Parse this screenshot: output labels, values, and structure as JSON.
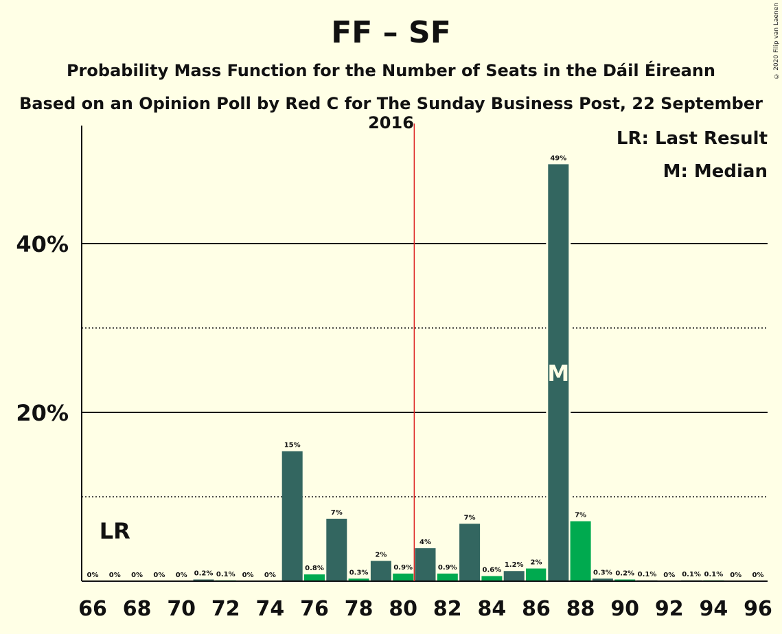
{
  "header": {
    "title": "FF – SF",
    "subtitle": "Probability Mass Function for the Number of Seats in the Dáil Éireann",
    "subtitle2": "Based on an Opinion Poll by Red C for The Sunday Business Post, 22 September 2016",
    "copyright": "© 2020 Filip van Laenen"
  },
  "legend": {
    "last_result": "LR: Last Result",
    "median": "M: Median"
  },
  "colors": {
    "dark_bar": "#336660",
    "light_bar": "#00aa4f",
    "majority_line": "#dd2222",
    "background": "#ffffe6"
  },
  "chart_data": {
    "type": "bar",
    "x": [
      66,
      67,
      68,
      69,
      70,
      71,
      72,
      73,
      74,
      75,
      76,
      77,
      78,
      79,
      80,
      81,
      82,
      83,
      84,
      85,
      86,
      87,
      88,
      89,
      90,
      91,
      92,
      93,
      94,
      95,
      96
    ],
    "values": [
      0,
      0,
      0,
      0,
      0,
      0.2,
      0.1,
      0,
      0,
      15.4,
      0.8,
      7.4,
      0.3,
      2.4,
      0.9,
      3.9,
      0.9,
      6.8,
      0.6,
      1.2,
      1.5,
      49.4,
      7.1,
      0.3,
      0.2,
      0.1,
      0,
      0.1,
      0.1,
      0,
      0
    ],
    "labels": [
      "0%",
      "0%",
      "0%",
      "0%",
      "0%",
      "0.2%",
      "0.1%",
      "0%",
      "0%",
      "15%",
      "0.8%",
      "7%",
      "0.3%",
      "2%",
      "0.9%",
      "4%",
      "0.9%",
      "7%",
      "0.6%",
      "1.2%",
      "2%",
      "49%",
      "7%",
      "0.3%",
      "0.2%",
      "0.1%",
      "0%",
      "0.1%",
      "0.1%",
      "0%",
      "0%"
    ],
    "xticks": [
      "66",
      "68",
      "70",
      "72",
      "74",
      "76",
      "78",
      "80",
      "82",
      "84",
      "86",
      "88",
      "90",
      "92",
      "94",
      "96"
    ],
    "yticks": [
      "20%",
      "40%"
    ],
    "ylim": [
      0,
      54
    ],
    "majority_threshold": 80.5,
    "last_result_seat": 67,
    "last_result_label": "LR",
    "median_seat": 87,
    "median_label": "M"
  }
}
